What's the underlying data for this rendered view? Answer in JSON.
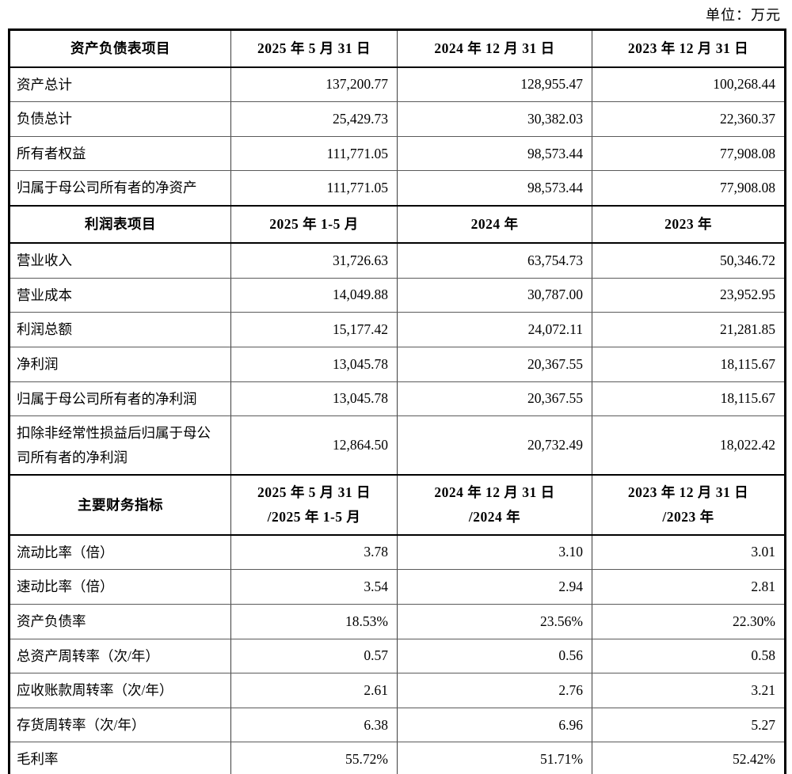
{
  "page": {
    "unit_label": "单位：万元"
  },
  "table": {
    "sections": [
      {
        "header": [
          "资产负债表项目",
          "2025 年 5 月 31 日",
          "2024 年 12 月 31 日",
          "2023 年 12 月 31 日"
        ],
        "rows": [
          [
            "资产总计",
            "137,200.77",
            "128,955.47",
            "100,268.44"
          ],
          [
            "负债总计",
            "25,429.73",
            "30,382.03",
            "22,360.37"
          ],
          [
            "所有者权益",
            "111,771.05",
            "98,573.44",
            "77,908.08"
          ],
          [
            "归属于母公司所有者的净资产",
            "111,771.05",
            "98,573.44",
            "77,908.08"
          ]
        ]
      },
      {
        "header": [
          "利润表项目",
          "2025 年 1-5 月",
          "2024 年",
          "2023 年"
        ],
        "rows": [
          [
            "营业收入",
            "31,726.63",
            "63,754.73",
            "50,346.72"
          ],
          [
            "营业成本",
            "14,049.88",
            "30,787.00",
            "23,952.95"
          ],
          [
            "利润总额",
            "15,177.42",
            "24,072.11",
            "21,281.85"
          ],
          [
            "净利润",
            "13,045.78",
            "20,367.55",
            "18,115.67"
          ],
          [
            "归属于母公司所有者的净利润",
            "13,045.78",
            "20,367.55",
            "18,115.67"
          ],
          [
            "扣除非经常性损益后归属于母公司所有者的净利润",
            "12,864.50",
            "20,732.49",
            "18,022.42"
          ]
        ]
      },
      {
        "header": [
          "主要财务指标",
          "2025 年 5 月 31 日\n/2025 年 1-5 月",
          "2024 年 12 月 31 日\n/2024 年",
          "2023 年 12 月 31 日\n/2023 年"
        ],
        "rows": [
          [
            "流动比率（倍）",
            "3.78",
            "3.10",
            "3.01"
          ],
          [
            "速动比率（倍）",
            "3.54",
            "2.94",
            "2.81"
          ],
          [
            "资产负债率",
            "18.53%",
            "23.56%",
            "22.30%"
          ],
          [
            "总资产周转率（次/年）",
            "0.57",
            "0.56",
            "0.58"
          ],
          [
            "应收账款周转率（次/年）",
            "2.61",
            "2.76",
            "3.21"
          ],
          [
            "存货周转率（次/年）",
            "6.38",
            "6.96",
            "5.27"
          ],
          [
            "毛利率",
            "55.72%",
            "51.71%",
            "52.42%"
          ]
        ]
      }
    ]
  }
}
